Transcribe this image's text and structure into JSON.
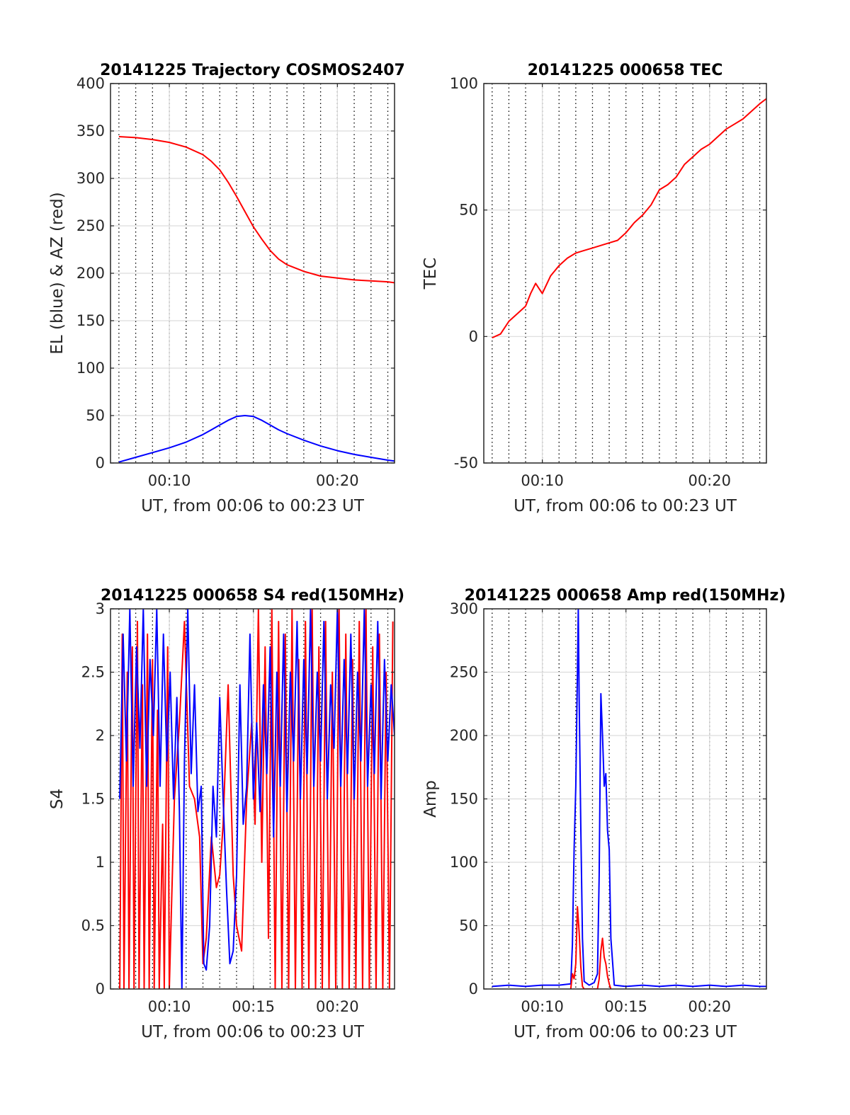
{
  "figure": {
    "background": "#ffffff"
  },
  "chart_data": [
    {
      "type": "line",
      "title": "20141225 Trajectory COSMOS2407",
      "xlabel": "UT, from 00:06 to 00:23 UT",
      "ylabel": "EL (blue) & AZ (red)",
      "xlim": [
        6.5,
        23.4
      ],
      "ylim": [
        0,
        400
      ],
      "xticks": [
        {
          "value": 10,
          "label": "00:10"
        },
        {
          "value": 20,
          "label": "00:20"
        }
      ],
      "yticks": [
        {
          "value": 0,
          "label": "0"
        },
        {
          "value": 50,
          "label": "50"
        },
        {
          "value": 100,
          "label": "100"
        },
        {
          "value": 150,
          "label": "150"
        },
        {
          "value": 200,
          "label": "200"
        },
        {
          "value": 250,
          "label": "250"
        },
        {
          "value": 300,
          "label": "300"
        },
        {
          "value": 350,
          "label": "350"
        },
        {
          "value": 400,
          "label": "400"
        }
      ],
      "minor_x_grid_step": 1,
      "grid": true,
      "series": [
        {
          "color": "#ff0000",
          "x": [
            7.0,
            8.0,
            9.0,
            10.0,
            11.0,
            12.0,
            12.5,
            13.0,
            13.5,
            14.0,
            14.5,
            15.0,
            15.5,
            16.0,
            16.5,
            17.0,
            18.0,
            19.0,
            20.0,
            21.0,
            22.0,
            23.0,
            23.4
          ],
          "values": [
            344,
            343,
            341,
            338,
            333,
            325,
            318,
            309,
            296,
            281,
            265,
            249,
            236,
            224,
            215,
            209,
            202,
            197,
            195,
            193,
            192,
            191,
            190
          ]
        },
        {
          "color": "#0000ff",
          "x": [
            7.0,
            8.0,
            9.0,
            10.0,
            11.0,
            12.0,
            12.5,
            13.0,
            13.5,
            14.0,
            14.5,
            15.0,
            15.5,
            16.0,
            16.5,
            17.0,
            18.0,
            19.0,
            20.0,
            21.0,
            22.0,
            23.0,
            23.4
          ],
          "values": [
            1,
            6,
            11,
            16,
            22,
            30,
            35,
            40,
            45,
            49,
            50,
            49,
            45,
            40,
            35,
            31,
            24,
            18,
            13,
            9,
            6,
            3,
            2
          ]
        }
      ]
    },
    {
      "type": "line",
      "title": "20141225 000658 TEC",
      "xlabel": "UT, from 00:06 to 00:23 UT",
      "ylabel": "TEC",
      "xlim": [
        6.5,
        23.4
      ],
      "ylim": [
        -50,
        100
      ],
      "xticks": [
        {
          "value": 10,
          "label": "00:10"
        },
        {
          "value": 20,
          "label": "00:20"
        }
      ],
      "yticks": [
        {
          "value": -50,
          "label": "-50"
        },
        {
          "value": 0,
          "label": "0"
        },
        {
          "value": 50,
          "label": "50"
        },
        {
          "value": 100,
          "label": "100"
        }
      ],
      "minor_x_grid_step": 1,
      "grid": true,
      "series": [
        {
          "color": "#ff0000",
          "x": [
            7.0,
            7.5,
            8.0,
            8.5,
            9.0,
            9.3,
            9.6,
            10.0,
            10.5,
            11.0,
            11.5,
            12.0,
            12.5,
            13.0,
            13.5,
            14.0,
            14.5,
            15.0,
            15.5,
            16.0,
            16.5,
            17.0,
            17.5,
            18.0,
            18.5,
            19.0,
            19.5,
            20.0,
            20.5,
            21.0,
            21.5,
            22.0,
            22.5,
            23.0,
            23.4
          ],
          "values": [
            -0.5,
            1,
            6,
            9,
            12,
            17,
            21,
            17,
            24,
            28,
            31,
            33,
            34,
            35,
            36,
            37,
            38,
            41,
            45,
            48,
            52,
            58,
            60,
            63,
            68,
            71,
            74,
            76,
            79,
            82,
            84,
            86,
            89,
            92,
            94
          ]
        }
      ]
    },
    {
      "type": "line",
      "title": "20141225 000658 S4 red(150MHz)",
      "xlabel": "UT, from 00:06 to 00:23 UT",
      "ylabel": "S4",
      "xlim": [
        6.5,
        23.4
      ],
      "ylim": [
        0,
        3
      ],
      "xticks": [
        {
          "value": 10,
          "label": "00:10"
        },
        {
          "value": 15,
          "label": "00:15"
        },
        {
          "value": 20,
          "label": "00:20"
        }
      ],
      "yticks": [
        {
          "value": 0,
          "label": "0"
        },
        {
          "value": 0.5,
          "label": "0.5"
        },
        {
          "value": 1,
          "label": "1"
        },
        {
          "value": 1.5,
          "label": "1.5"
        },
        {
          "value": 2,
          "label": "2"
        },
        {
          "value": 2.5,
          "label": "2.5"
        },
        {
          "value": 3,
          "label": "3"
        }
      ],
      "minor_x_grid_step": 1,
      "grid": true,
      "series": [
        {
          "color": "#ff0000",
          "x": [
            7.05,
            7.2,
            7.3,
            7.5,
            7.6,
            7.8,
            7.9,
            8.1,
            8.2,
            8.4,
            8.5,
            8.7,
            8.8,
            9.0,
            9.1,
            9.3,
            9.4,
            9.6,
            9.7,
            9.9,
            10.0,
            10.3,
            10.6,
            10.9,
            11.2,
            11.5,
            11.8,
            12.0,
            12.2,
            12.5,
            12.8,
            13.0,
            13.2,
            13.5,
            13.8,
            14.0,
            14.3,
            14.6,
            14.9,
            15.1,
            15.3,
            15.5,
            15.7,
            15.9,
            16.1,
            16.3,
            16.5,
            16.7,
            16.9,
            17.1,
            17.3,
            17.5,
            17.7,
            17.9,
            18.1,
            18.3,
            18.5,
            18.7,
            18.9,
            19.1,
            19.3,
            19.5,
            19.7,
            19.9,
            20.1,
            20.3,
            20.5,
            20.7,
            20.9,
            21.1,
            21.3,
            21.5,
            21.7,
            21.9,
            22.1,
            22.3,
            22.5,
            22.7,
            22.9,
            23.1,
            23.3
          ],
          "values": [
            0,
            2.8,
            0,
            2.5,
            0,
            2.7,
            0,
            2.9,
            0,
            2.4,
            0,
            2.8,
            0,
            2.6,
            0,
            2.2,
            0,
            1.3,
            0,
            2.7,
            0,
            1.5,
            2.1,
            2.9,
            1.6,
            1.5,
            1.2,
            0.2,
            0.4,
            1.2,
            0.8,
            0.9,
            1.3,
            2.4,
            0.9,
            0.5,
            0.3,
            1.5,
            2.1,
            1.3,
            3.0,
            1.0,
            2.7,
            0.4,
            3.0,
            0,
            2.9,
            0,
            2.8,
            0,
            3.0,
            0,
            2.6,
            0,
            2.9,
            0,
            3.0,
            0,
            2.7,
            0,
            2.9,
            0,
            2.5,
            0,
            3.0,
            0,
            2.8,
            0,
            2.6,
            0,
            2.9,
            0,
            3.0,
            0,
            2.7,
            0,
            2.8,
            0,
            2.5,
            0,
            2.9
          ]
        },
        {
          "color": "#0000ff",
          "x": [
            7.05,
            7.25,
            7.45,
            7.65,
            7.85,
            8.05,
            8.25,
            8.45,
            8.65,
            8.85,
            9.05,
            9.25,
            9.45,
            9.65,
            9.85,
            10.05,
            10.25,
            10.45,
            10.6,
            10.75,
            10.9,
            11.1,
            11.3,
            11.5,
            11.7,
            11.9,
            12.05,
            12.2,
            12.4,
            12.6,
            12.8,
            13.0,
            13.2,
            13.4,
            13.6,
            13.8,
            14.0,
            14.2,
            14.4,
            14.6,
            14.8,
            15.0,
            15.2,
            15.4,
            15.6,
            15.8,
            16.0,
            16.2,
            16.4,
            16.6,
            16.8,
            17.0,
            17.2,
            17.4,
            17.6,
            17.8,
            18.0,
            18.2,
            18.4,
            18.6,
            18.8,
            19.0,
            19.2,
            19.4,
            19.6,
            19.8,
            20.0,
            20.2,
            20.4,
            20.6,
            20.8,
            21.0,
            21.2,
            21.4,
            21.6,
            21.8,
            22.0,
            22.2,
            22.4,
            22.6,
            22.8,
            23.0,
            23.2,
            23.4
          ],
          "values": [
            1.5,
            2.8,
            1.8,
            3.0,
            1.6,
            2.7,
            1.9,
            3.0,
            1.6,
            2.6,
            2.0,
            3.0,
            1.6,
            2.8,
            1.8,
            2.5,
            1.5,
            2.3,
            1.4,
            0,
            1.8,
            3.0,
            1.7,
            2.4,
            1.4,
            1.6,
            0.2,
            0.15,
            0.5,
            1.6,
            1.2,
            2.3,
            1.5,
            0.8,
            0.2,
            0.3,
            0.9,
            2.4,
            1.3,
            1.6,
            2.8,
            1.5,
            2.1,
            1.4,
            2.4,
            1.7,
            2.7,
            1.2,
            2.5,
            1.6,
            2.8,
            1.4,
            2.5,
            1.8,
            2.9,
            1.5,
            2.6,
            1.7,
            3.0,
            1.6,
            2.5,
            1.8,
            2.9,
            1.5,
            2.4,
            1.9,
            3.0,
            1.6,
            2.6,
            1.7,
            2.8,
            1.5,
            2.5,
            1.8,
            3.0,
            1.6,
            2.4,
            1.7,
            2.9,
            1.5,
            2.6,
            1.8,
            2.4,
            2.0
          ]
        }
      ]
    },
    {
      "type": "line",
      "title": "20141225 000658 Amp red(150MHz)",
      "xlabel": "UT, from 00:06 to 00:23 UT",
      "ylabel": "Amp",
      "xlim": [
        6.5,
        23.4
      ],
      "ylim": [
        0,
        300
      ],
      "xticks": [
        {
          "value": 10,
          "label": "00:10"
        },
        {
          "value": 15,
          "label": "00:15"
        },
        {
          "value": 20,
          "label": "00:20"
        }
      ],
      "yticks": [
        {
          "value": 0,
          "label": "0"
        },
        {
          "value": 50,
          "label": "50"
        },
        {
          "value": 100,
          "label": "100"
        },
        {
          "value": 150,
          "label": "150"
        },
        {
          "value": 200,
          "label": "200"
        },
        {
          "value": 250,
          "label": "250"
        },
        {
          "value": 300,
          "label": "300"
        }
      ],
      "minor_x_grid_step": 1,
      "grid": true,
      "series": [
        {
          "color": "#0000ff",
          "x": [
            7.0,
            8.0,
            9.0,
            10.0,
            11.0,
            11.7,
            11.8,
            11.9,
            12.0,
            12.1,
            12.15,
            12.2,
            12.3,
            12.4,
            12.5,
            12.8,
            13.1,
            13.3,
            13.4,
            13.5,
            13.6,
            13.7,
            13.8,
            13.9,
            14.0,
            14.1,
            14.3,
            15.0,
            16.0,
            17.0,
            18.0,
            19.0,
            20.0,
            21.0,
            22.0,
            23.0,
            23.4
          ],
          "values": [
            2,
            3,
            2,
            3,
            3,
            4,
            35,
            110,
            160,
            250,
            300,
            230,
            130,
            40,
            6,
            3,
            5,
            12,
            90,
            233,
            200,
            160,
            170,
            125,
            110,
            40,
            3,
            2,
            3,
            2,
            3,
            2,
            3,
            2,
            3,
            2,
            2
          ]
        },
        {
          "color": "#ff0000",
          "x": [
            11.7,
            11.8,
            11.9,
            12.0,
            12.1,
            12.2,
            12.3,
            12.4,
            12.5,
            13.3,
            13.4,
            13.5,
            13.6,
            13.7,
            13.8,
            13.9,
            14.0,
            14.1
          ],
          "values": [
            0,
            12,
            8,
            20,
            65,
            45,
            18,
            2,
            0,
            0,
            8,
            30,
            40,
            25,
            20,
            10,
            4,
            0
          ]
        }
      ]
    }
  ]
}
